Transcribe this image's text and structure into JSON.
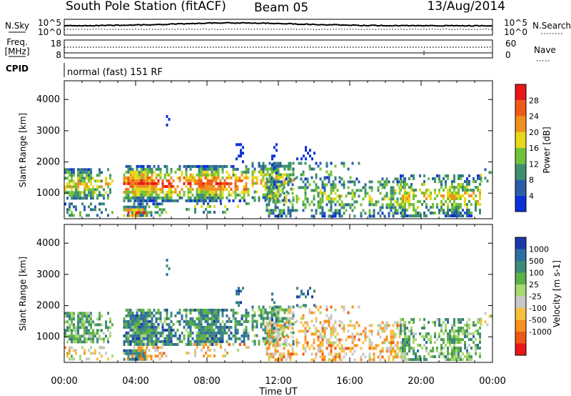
{
  "header": {
    "station": "South Pole Station (fitACF)",
    "beam": "Beam 05",
    "date": "13/Aug/2014"
  },
  "strip_labels": {
    "nsky": "N.Sky",
    "nsky_top": "10^5",
    "nsky_bottom": "10^0",
    "nsearch": "N.Search",
    "nsearch_top": "10^5",
    "nsearch_bottom": "10^0",
    "freq_line1": "Freq.",
    "freq_line2": "[MHz]",
    "freq_top": "18",
    "freq_bottom": "8",
    "nave": "Nave",
    "nave_top": "60",
    "nave_bottom": "0",
    "cpid": "CPID",
    "mode": "normal (fast) 151 RF"
  },
  "chart_data": [
    {
      "type": "heatmap",
      "title": "",
      "quantity": "Power",
      "ylabel": "Slant Range [km]",
      "xlabel": "Time UT",
      "x_ticks": [
        "00:00",
        "04:00",
        "08:00",
        "12:00",
        "16:00",
        "20:00",
        "00:00"
      ],
      "y_ticks": [
        1000,
        2000,
        3000,
        4000
      ],
      "ylim": [
        180,
        4600
      ],
      "colorbar": {
        "label": "Power [dB]",
        "ticks": [
          "4",
          "8",
          "12",
          "16",
          "20",
          "24",
          "28"
        ],
        "colors": [
          "#0a32d8",
          "#2a5ea8",
          "#3e8f6e",
          "#6fc33a",
          "#e8d81a",
          "#f09020",
          "#f05a18",
          "#e81818"
        ]
      }
    },
    {
      "type": "heatmap",
      "title": "",
      "quantity": "Velocity",
      "ylabel": "Slant Range [km]",
      "xlabel": "Time UT",
      "x_ticks": [
        "00:00",
        "04:00",
        "08:00",
        "12:00",
        "16:00",
        "20:00",
        "00:00"
      ],
      "y_ticks": [
        1000,
        2000,
        3000,
        4000
      ],
      "ylim": [
        180,
        4600
      ],
      "colorbar": {
        "label": "Velocity [m s-1]",
        "ticks": [
          "1000",
          "500",
          "100",
          "25",
          "-25",
          "-100",
          "-500",
          "-1000"
        ],
        "colors": [
          "#1a3aa8",
          "#2e6ea0",
          "#3e8a78",
          "#5cb048",
          "#a8d870",
          "#c8c8c8",
          "#f8c040",
          "#f89020",
          "#f05818",
          "#e81818"
        ]
      }
    }
  ],
  "colors": {
    "axis": "#000000",
    "background": "#ffffff"
  }
}
